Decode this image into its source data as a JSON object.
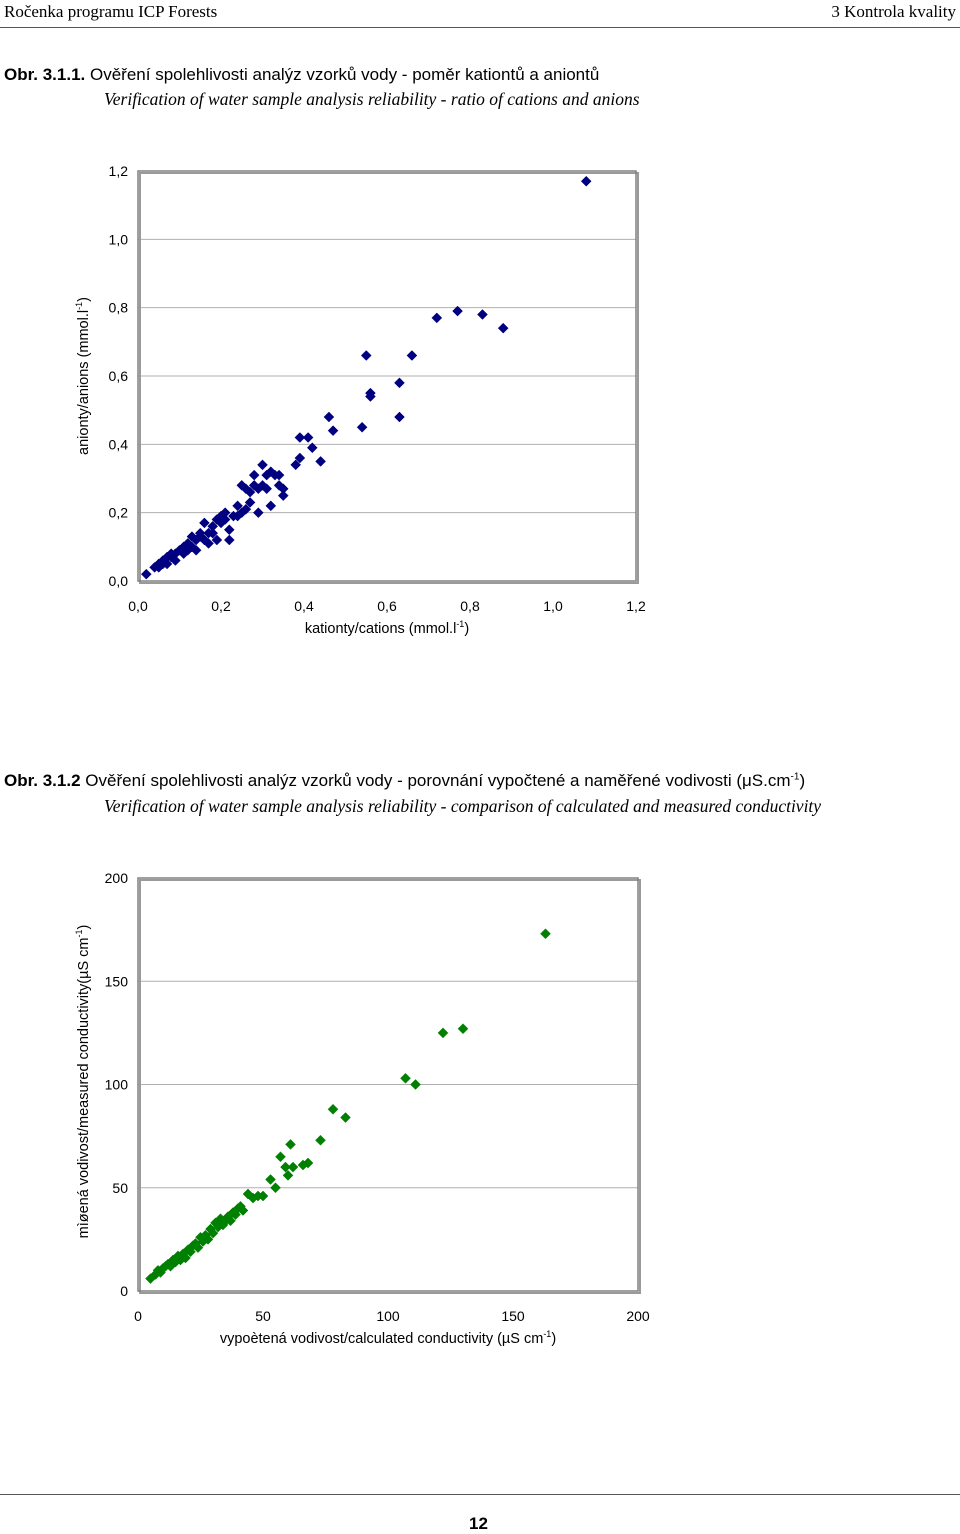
{
  "header": {
    "left": "Ročenka programu ICP Forests",
    "right": "3 Kontrola kvality"
  },
  "figure1": {
    "number": "Obr. 3.1.1.",
    "title_cz": "Ověření spolehlivosti analýz vzorků vody - poměr kationtů a aniontů",
    "title_en": "Verification of water sample analysis reliability - ratio of cations and anions"
  },
  "figure2": {
    "number": "Obr. 3.1.2",
    "title_cz": "Ověření spolehlivosti analýz vzorků vody - porovnání vypočtené a naměřené vodivosti (μS.cm",
    "title_sup": "-1",
    "title_close": ")",
    "title_en": "Verification of water sample analysis reliability - comparison of calculated and measured conductivity"
  },
  "page_number": "12",
  "chart_data": [
    {
      "type": "scatter",
      "title": "",
      "xlabel": "kationty/cations (mmol.l-1)",
      "ylabel": "anionty/anions (mmol.l-1)",
      "xlim": [
        0,
        1.2
      ],
      "ylim": [
        0,
        1.2
      ],
      "x_ticks": [
        "0,0",
        "0,2",
        "0,4",
        "0,6",
        "0,8",
        "1,0",
        "1,2"
      ],
      "y_ticks": [
        "0,0",
        "0,2",
        "0,4",
        "0,6",
        "0,8",
        "1,0",
        "1,2"
      ],
      "grid": "horizontal",
      "marker_color": "#000080",
      "points": [
        [
          0.02,
          0.02
        ],
        [
          0.04,
          0.04
        ],
        [
          0.05,
          0.05
        ],
        [
          0.05,
          0.04
        ],
        [
          0.06,
          0.06
        ],
        [
          0.06,
          0.05
        ],
        [
          0.07,
          0.07
        ],
        [
          0.07,
          0.05
        ],
        [
          0.08,
          0.07
        ],
        [
          0.08,
          0.08
        ],
        [
          0.09,
          0.06
        ],
        [
          0.09,
          0.08
        ],
        [
          0.1,
          0.09
        ],
        [
          0.11,
          0.1
        ],
        [
          0.11,
          0.08
        ],
        [
          0.12,
          0.11
        ],
        [
          0.12,
          0.09
        ],
        [
          0.13,
          0.13
        ],
        [
          0.13,
          0.1
        ],
        [
          0.14,
          0.12
        ],
        [
          0.14,
          0.09
        ],
        [
          0.15,
          0.13
        ],
        [
          0.15,
          0.14
        ],
        [
          0.16,
          0.12
        ],
        [
          0.16,
          0.17
        ],
        [
          0.17,
          0.14
        ],
        [
          0.17,
          0.11
        ],
        [
          0.18,
          0.16
        ],
        [
          0.18,
          0.14
        ],
        [
          0.19,
          0.18
        ],
        [
          0.19,
          0.12
        ],
        [
          0.2,
          0.17
        ],
        [
          0.2,
          0.19
        ],
        [
          0.21,
          0.2
        ],
        [
          0.21,
          0.18
        ],
        [
          0.22,
          0.15
        ],
        [
          0.22,
          0.12
        ],
        [
          0.23,
          0.19
        ],
        [
          0.24,
          0.22
        ],
        [
          0.24,
          0.19
        ],
        [
          0.25,
          0.28
        ],
        [
          0.25,
          0.2
        ],
        [
          0.26,
          0.27
        ],
        [
          0.26,
          0.21
        ],
        [
          0.27,
          0.23
        ],
        [
          0.27,
          0.26
        ],
        [
          0.28,
          0.28
        ],
        [
          0.28,
          0.31
        ],
        [
          0.29,
          0.27
        ],
        [
          0.29,
          0.2
        ],
        [
          0.3,
          0.34
        ],
        [
          0.3,
          0.28
        ],
        [
          0.31,
          0.31
        ],
        [
          0.31,
          0.27
        ],
        [
          0.32,
          0.32
        ],
        [
          0.32,
          0.22
        ],
        [
          0.33,
          0.31
        ],
        [
          0.34,
          0.31
        ],
        [
          0.34,
          0.28
        ],
        [
          0.35,
          0.25
        ],
        [
          0.35,
          0.27
        ],
        [
          0.38,
          0.34
        ],
        [
          0.39,
          0.36
        ],
        [
          0.39,
          0.42
        ],
        [
          0.41,
          0.42
        ],
        [
          0.42,
          0.39
        ],
        [
          0.44,
          0.35
        ],
        [
          0.46,
          0.48
        ],
        [
          0.47,
          0.44
        ],
        [
          0.54,
          0.45
        ],
        [
          0.55,
          0.66
        ],
        [
          0.56,
          0.55
        ],
        [
          0.56,
          0.54
        ],
        [
          0.63,
          0.58
        ],
        [
          0.63,
          0.48
        ],
        [
          0.66,
          0.66
        ],
        [
          0.72,
          0.77
        ],
        [
          0.77,
          0.79
        ],
        [
          0.83,
          0.78
        ],
        [
          0.88,
          0.74
        ],
        [
          1.08,
          1.17
        ]
      ]
    },
    {
      "type": "scatter",
      "title": "",
      "xlabel": "vypoètená vodivost/calculated conductivity (µS cm-1)",
      "ylabel": "mìøená vodivost/measured conductivity(µS cm-1)",
      "xlim": [
        0,
        200
      ],
      "ylim": [
        0,
        200
      ],
      "x_ticks": [
        "0",
        "50",
        "100",
        "150",
        "200"
      ],
      "y_ticks": [
        "0",
        "50",
        "100",
        "150",
        "200"
      ],
      "grid": "horizontal",
      "marker_color": "#008000",
      "points": [
        [
          5,
          6
        ],
        [
          7,
          8
        ],
        [
          8,
          10
        ],
        [
          9,
          9
        ],
        [
          10,
          11
        ],
        [
          11,
          12
        ],
        [
          12,
          13
        ],
        [
          13,
          12
        ],
        [
          14,
          15
        ],
        [
          15,
          14
        ],
        [
          16,
          17
        ],
        [
          17,
          15
        ],
        [
          18,
          18
        ],
        [
          19,
          16
        ],
        [
          20,
          20
        ],
        [
          21,
          19
        ],
        [
          22,
          22
        ],
        [
          23,
          23
        ],
        [
          24,
          21
        ],
        [
          25,
          26
        ],
        [
          26,
          24
        ],
        [
          27,
          27
        ],
        [
          28,
          25
        ],
        [
          29,
          30
        ],
        [
          30,
          28
        ],
        [
          31,
          33
        ],
        [
          32,
          31
        ],
        [
          33,
          35
        ],
        [
          34,
          32
        ],
        [
          35,
          34
        ],
        [
          36,
          36
        ],
        [
          37,
          34
        ],
        [
          38,
          38
        ],
        [
          39,
          37
        ],
        [
          40,
          40
        ],
        [
          41,
          41
        ],
        [
          42,
          39
        ],
        [
          44,
          47
        ],
        [
          46,
          45
        ],
        [
          48,
          46
        ],
        [
          50,
          46
        ],
        [
          53,
          54
        ],
        [
          55,
          50
        ],
        [
          57,
          65
        ],
        [
          59,
          60
        ],
        [
          60,
          56
        ],
        [
          61,
          71
        ],
        [
          62,
          60
        ],
        [
          66,
          61
        ],
        [
          68,
          62
        ],
        [
          73,
          73
        ],
        [
          78,
          88
        ],
        [
          83,
          84
        ],
        [
          107,
          103
        ],
        [
          111,
          100
        ],
        [
          122,
          125
        ],
        [
          130,
          127
        ],
        [
          163,
          173
        ]
      ]
    }
  ]
}
